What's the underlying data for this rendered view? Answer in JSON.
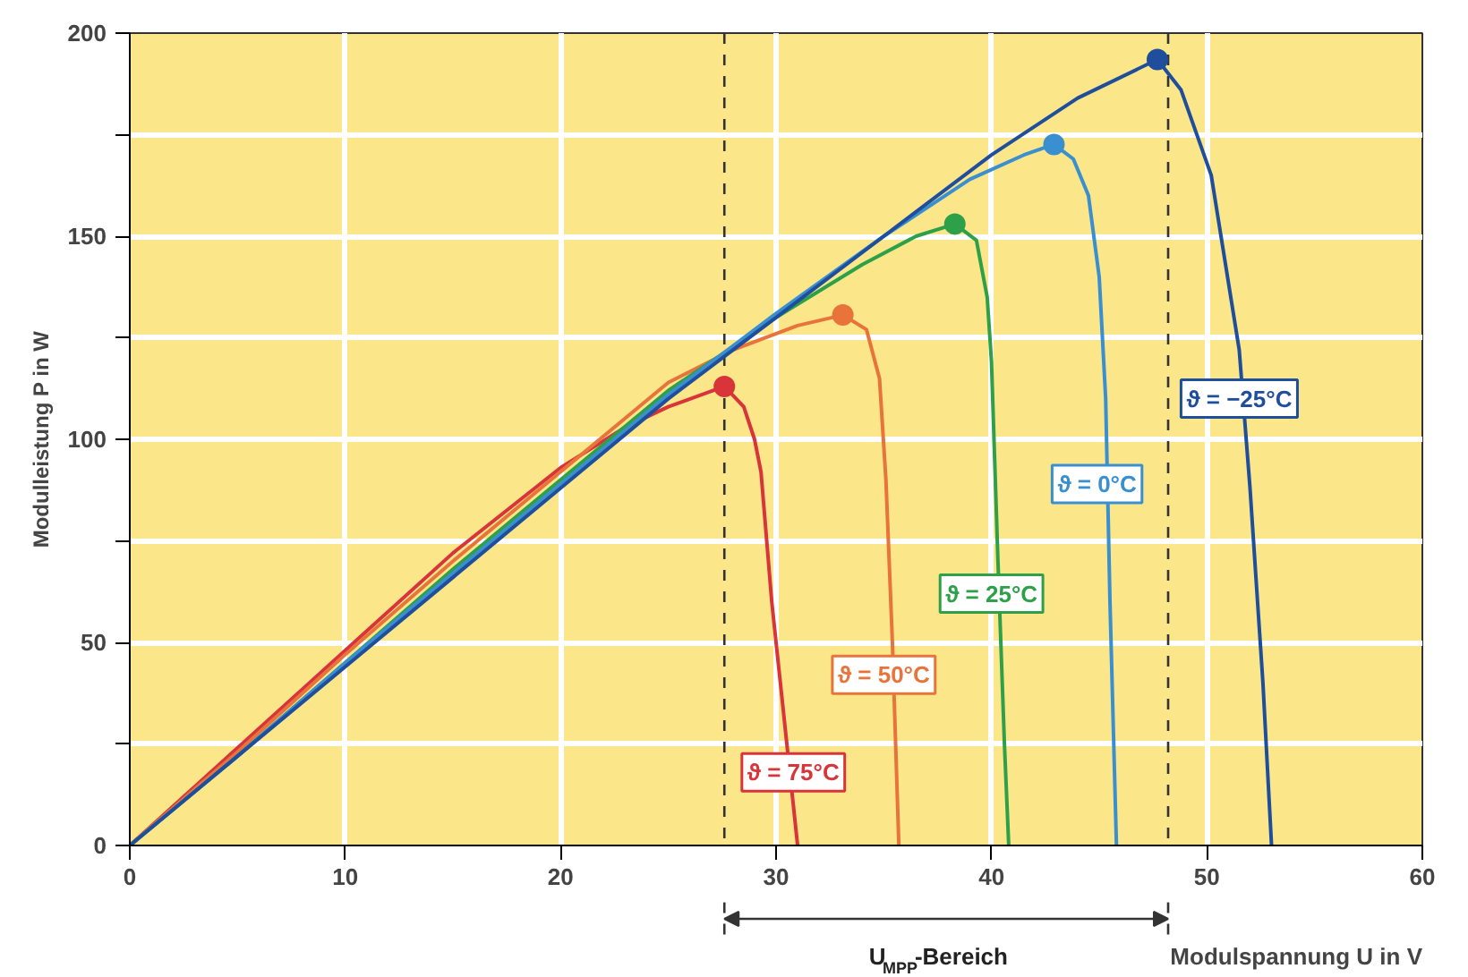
{
  "chart_data": {
    "type": "line",
    "xlabel": "Modulspannung U in V",
    "ylabel": "Modulleistung P in W",
    "xlim": [
      0,
      60
    ],
    "xticks": [
      0,
      10,
      20,
      30,
      40,
      50,
      60
    ],
    "ylim": [
      0,
      200
    ],
    "yticks": [
      0,
      {
        "value": 25,
        "label": null
      },
      50,
      {
        "value": 75,
        "label": null
      },
      100,
      {
        "value": 125,
        "label": null
      },
      150,
      {
        "value": 175,
        "label": null
      },
      200
    ],
    "grid": true,
    "line_style": "solid",
    "series": [
      {
        "color": "#d9343a",
        "x": [
          0,
          5,
          10,
          15,
          20,
          23,
          25,
          27.6,
          28.5,
          29.0,
          29.3,
          29.8,
          30.5,
          31.0
        ],
        "values": [
          0,
          24,
          48,
          72,
          93,
          103,
          108,
          113,
          108,
          100,
          92,
          60,
          25,
          0
        ]
      },
      {
        "color": "#e8743b",
        "x": [
          0,
          5,
          10,
          15,
          20,
          25,
          28,
          31,
          33.1,
          34.2,
          34.8,
          35.1,
          35.4,
          35.7
        ],
        "values": [
          0,
          23,
          47,
          70,
          92,
          114,
          122,
          128,
          130.6,
          127,
          115,
          90,
          50,
          0
        ]
      },
      {
        "color": "#2ea04a",
        "x": [
          0,
          5,
          10,
          15,
          20,
          25,
          30,
          34,
          36.5,
          38.3,
          39.3,
          39.8,
          40.0,
          40.3,
          40.6,
          40.8
        ],
        "values": [
          0,
          22,
          45,
          68,
          90,
          112,
          130,
          143,
          150,
          153,
          149,
          135,
          119,
          70,
          25,
          0
        ]
      },
      {
        "color": "#3a8fd0",
        "x": [
          0,
          5,
          10,
          15,
          20,
          25,
          30,
          35,
          39,
          41.5,
          42.9,
          43.8,
          44.5,
          45.0,
          45.3,
          45.5,
          45.7,
          45.8
        ],
        "values": [
          0,
          22,
          45,
          67,
          89,
          111,
          131,
          150,
          164,
          170,
          172.6,
          169,
          160,
          140,
          110,
          60,
          20,
          0
        ]
      },
      {
        "color": "#1f4e9c",
        "x": [
          0,
          5,
          10,
          15,
          20,
          25,
          30,
          35,
          40,
          44,
          47.7,
          48.8,
          50.2,
          51.5,
          52.0,
          52.6,
          53.0
        ],
        "values": [
          0,
          22,
          44,
          66,
          88,
          110,
          130,
          150,
          170,
          184,
          193.5,
          186,
          165,
          122,
          88,
          40,
          0
        ]
      },
      {
        "type": "scatter",
        "marker": "circle",
        "x": [
          27.6,
          33.1,
          38.3,
          42.9,
          47.7
        ],
        "values": [
          113,
          130.6,
          153,
          172.6,
          193.5
        ],
        "colors": [
          "#d9343a",
          "#e8743b",
          "#2ea04a",
          "#3a8fd0",
          "#1f4e9c"
        ]
      }
    ],
    "ref_lines": [
      {
        "axis": "x",
        "value": 27.6,
        "color": "#333333",
        "line_style": "dashed"
      },
      {
        "axis": "x",
        "value": 48.2,
        "color": "#333333",
        "line_style": "dashed"
      }
    ],
    "annotations": [
      {
        "text": "ϑ = 75°C",
        "x": 30.8,
        "y": 18
      },
      {
        "text": "ϑ = 50°C",
        "x": 35.0,
        "y": 42
      },
      {
        "text": "ϑ = 25°C",
        "x": 40.0,
        "y": 62
      },
      {
        "text": "ϑ = 0°C",
        "x": 44.9,
        "y": 89
      },
      {
        "text": "ϑ = −25°C",
        "x": 51.5,
        "y": 110
      },
      "U$_{MPP}$-Bereich"
    ]
  }
}
